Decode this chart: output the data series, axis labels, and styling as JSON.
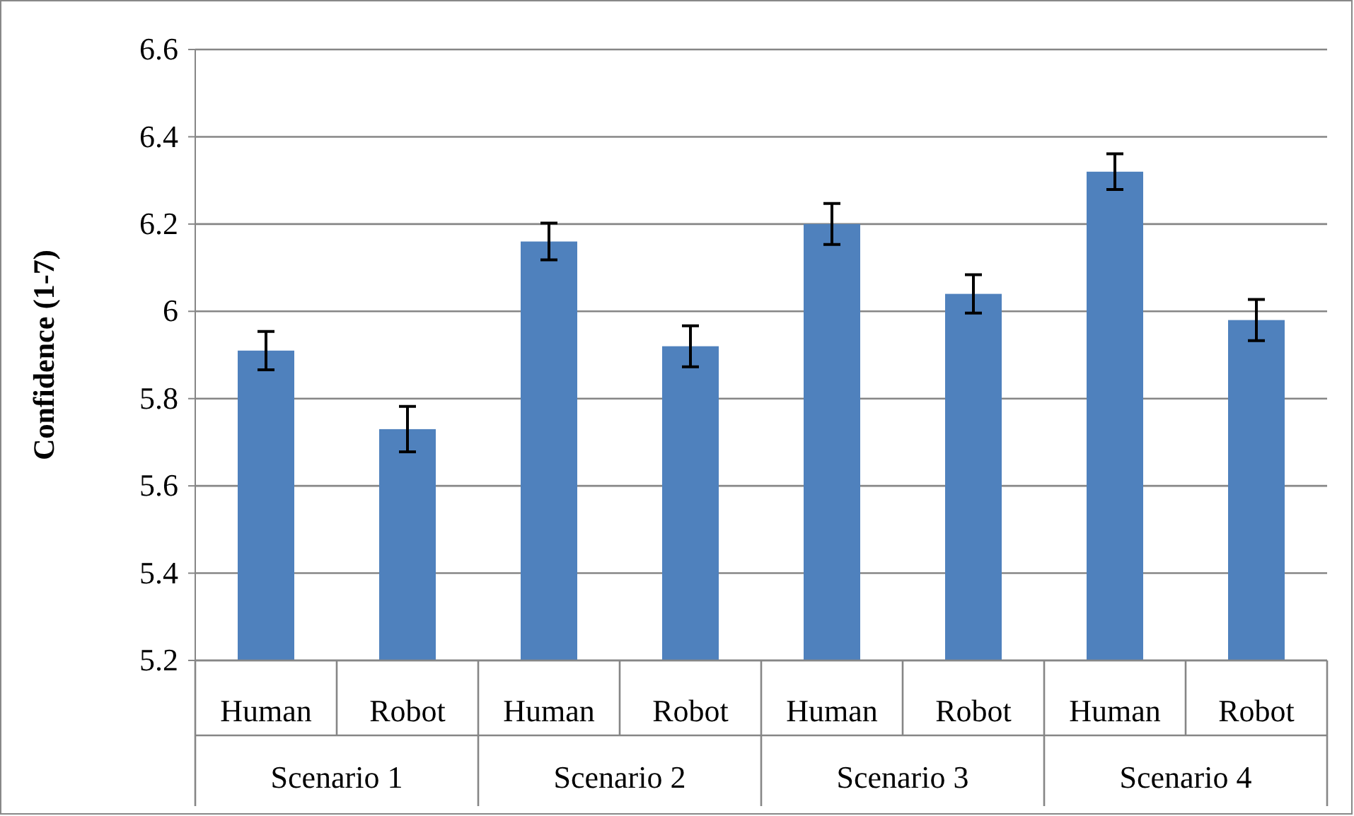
{
  "chart_data": {
    "type": "bar",
    "ylabel": "Confidence (1-7)",
    "categories": [
      "Human",
      "Robot",
      "Human",
      "Robot",
      "Human",
      "Robot",
      "Human",
      "Robot"
    ],
    "values": [
      5.91,
      5.73,
      6.16,
      5.92,
      6.2,
      6.04,
      6.32,
      5.98
    ],
    "errors": [
      0.044,
      0.052,
      0.042,
      0.047,
      0.047,
      0.044,
      0.041,
      0.047
    ],
    "color": "#4f81bd",
    "ylim": [
      5.2,
      6.6
    ],
    "yticks": [
      {
        "value": 5.2,
        "label": "5.2"
      },
      {
        "value": 5.4,
        "label": "5.4"
      },
      {
        "value": 5.6,
        "label": "5.6"
      },
      {
        "value": 5.8,
        "label": "5.8"
      },
      {
        "value": 6,
        "label": "6"
      },
      {
        "value": 6.2,
        "label": "6.2"
      },
      {
        "value": 6.4,
        "label": "6.4"
      },
      {
        "value": 6.6,
        "label": "6.6"
      }
    ],
    "grid": "y",
    "annotations": [
      "Scenario 1",
      "Scenario 2",
      "Scenario 3",
      "Scenario 4"
    ]
  }
}
